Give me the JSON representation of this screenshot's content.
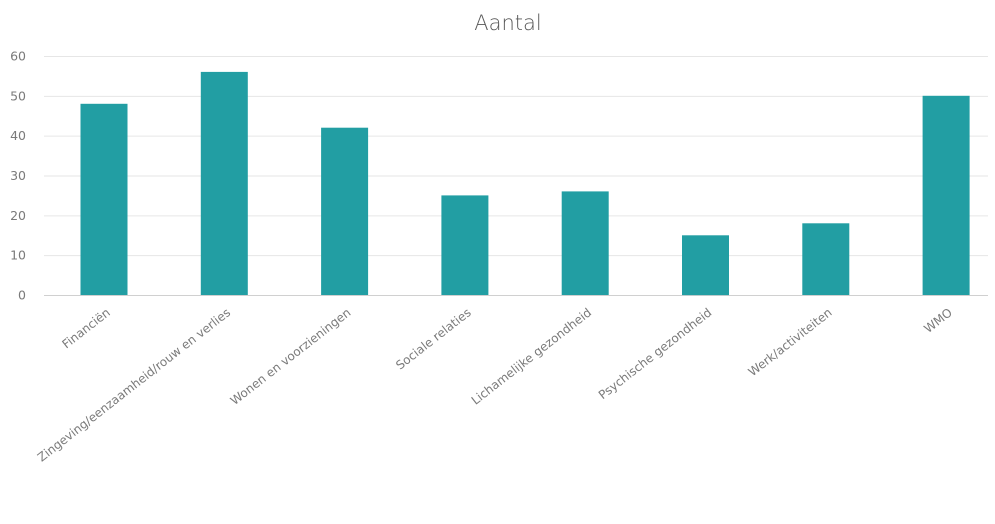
{
  "colors": {
    "bar": "#229ea3",
    "grid": "#e6e6e6",
    "text": "#7a7a7a",
    "title": "#595959"
  },
  "chart_data": {
    "type": "bar",
    "title": "Aantal",
    "xlabel": "",
    "ylabel": "",
    "ylim": [
      0,
      60
    ],
    "yticks": [
      0,
      10,
      20,
      30,
      40,
      50,
      60
    ],
    "grid": true,
    "legend": "none",
    "categories": [
      "Financiën",
      "Zingeving/eenzaamheid/rouw en verlies",
      "Wonen en voorzieningen",
      "Sociale relaties",
      "Lichamelijke gezondheid",
      "Psychische gezondheid",
      "Werk/activiteiten",
      "WMO"
    ],
    "values": [
      48,
      56,
      42,
      25,
      26,
      15,
      18,
      50
    ]
  }
}
